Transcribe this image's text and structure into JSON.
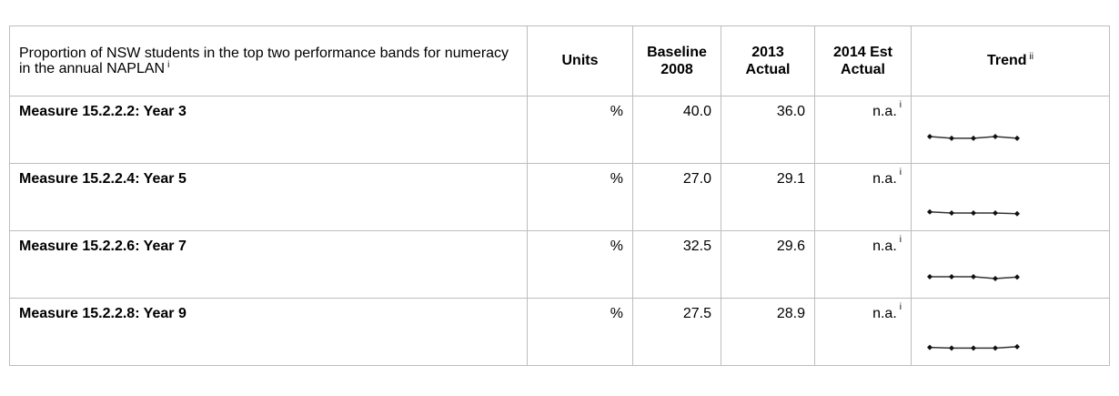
{
  "table": {
    "header": {
      "description": "Proportion of NSW students in the top two performance bands for numeracy in the annual NAPLAN",
      "description_note": "i",
      "units": "Units",
      "baseline": "Baseline 2008",
      "actual_2013": "2013 Actual",
      "est_2014": "2014 Est Actual",
      "trend": "Trend",
      "trend_note": "ii"
    },
    "trend_ylim": [
      20,
      45
    ],
    "rows": [
      {
        "measure": "Measure 15.2.2.2: Year 3",
        "units": "%",
        "baseline": "40.0",
        "actual_2013": "36.0",
        "est_2014": "n.a.",
        "est_2014_note": "i",
        "trend": [
          40,
          37.6,
          37.6,
          40,
          37.6
        ]
      },
      {
        "measure": "Measure 15.2.2.4: Year 5",
        "units": "%",
        "baseline": "27.0",
        "actual_2013": "29.1",
        "est_2014": "n.a.",
        "est_2014_note": "i",
        "trend": [
          29,
          27.5,
          27.5,
          27.5,
          26.5
        ]
      },
      {
        "measure": "Measure 15.2.2.6: Year 7",
        "units": "%",
        "baseline": "32.5",
        "actual_2013": "29.6",
        "est_2014": "n.a.",
        "est_2014_note": "i",
        "trend": [
          32.5,
          32.5,
          32.5,
          30,
          32
        ]
      },
      {
        "measure": "Measure 15.2.2.8: Year 9",
        "units": "%",
        "baseline": "27.5",
        "actual_2013": "28.9",
        "est_2014": "n.a.",
        "est_2014_note": "i",
        "trend": [
          28,
          27,
          27,
          27,
          28.9
        ]
      }
    ]
  }
}
